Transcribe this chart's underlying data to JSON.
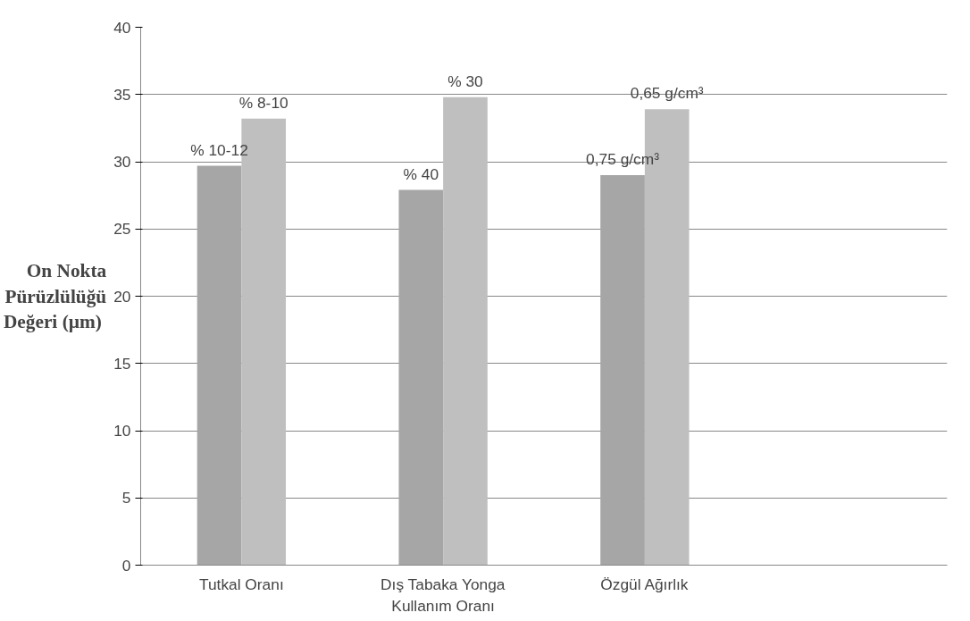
{
  "chart_data": {
    "type": "bar",
    "ylabel": "On Nokta\nPürüzlülüğü\nDeğeri  (µm)",
    "categories": [
      "Tutkal Oranı",
      "Dış Tabaka Yonga\nKullanım Oranı",
      "Özgül Ağırlık",
      null
    ],
    "series": [
      {
        "name": "% 10-12",
        "color": "#a6a6a6",
        "values": [
          29.7,
          null,
          null,
          null
        ]
      },
      {
        "name": "% 8-10",
        "color": "#bfbfbf",
        "values": [
          33.2,
          null,
          null,
          null
        ]
      },
      {
        "name": "% 40",
        "color": "#a6a6a6",
        "values": [
          null,
          27.9,
          null,
          null
        ]
      },
      {
        "name": "% 30",
        "color": "#bfbfbf",
        "values": [
          null,
          34.8,
          null,
          null
        ]
      },
      {
        "name": "0,75 g/cm³",
        "color": "#a6a6a6",
        "values": [
          null,
          null,
          29.0,
          null
        ]
      },
      {
        "name": "0,65 g/cm³",
        "color": "#bfbfbf",
        "values": [
          null,
          null,
          33.9,
          null
        ]
      }
    ],
    "ylim": [
      0,
      40
    ],
    "yticks": [
      0,
      5,
      10,
      15,
      20,
      25,
      30,
      35,
      40
    ],
    "grid": "y"
  }
}
